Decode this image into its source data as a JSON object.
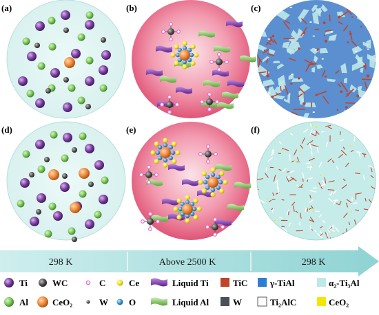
{
  "panels": [
    {
      "id": "a",
      "label": "(a)"
    },
    {
      "id": "b",
      "label": "(b)"
    },
    {
      "id": "c",
      "label": "(c)"
    },
    {
      "id": "d",
      "label": "(d)"
    },
    {
      "id": "e",
      "label": "(e)"
    },
    {
      "id": "f",
      "label": "(f)"
    }
  ],
  "timeline": {
    "segments": [
      "298 K",
      "Above 2500 K",
      "298 K"
    ]
  },
  "legend": {
    "row1": [
      "Ti",
      "WC",
      "C",
      "Ce",
      "Liquid Ti",
      "TiC",
      "γ-TiAl",
      "α₂-Ti₃Al"
    ],
    "row2": [
      "Al",
      "CeO₂",
      "W",
      "O",
      "Liquid Al",
      "W",
      "Ti₂AlC",
      "CeO₂"
    ]
  },
  "colors": {
    "ti": "#7b3fa0",
    "al": "#7cc85a",
    "wc": "#555555",
    "c": "#e870c8",
    "ce": "#f2e21a",
    "ceo2": "#f08a3a",
    "o": "#3f95d4",
    "liquid_ti": "#7a33b0",
    "liquid_al": "#86c85a",
    "tic": "#c0442a",
    "w_phase": "#4a4f5a",
    "gamma_tial": "#2d7fd1",
    "alpha2_ti3al": "#bfe8e8",
    "ti2alc": "#ffffff",
    "ceo2_phase": "#f5e600",
    "solid_bg": "#e2f5f3",
    "melt_bg": "#ea7b92",
    "arrow": "#9ad7d7"
  }
}
